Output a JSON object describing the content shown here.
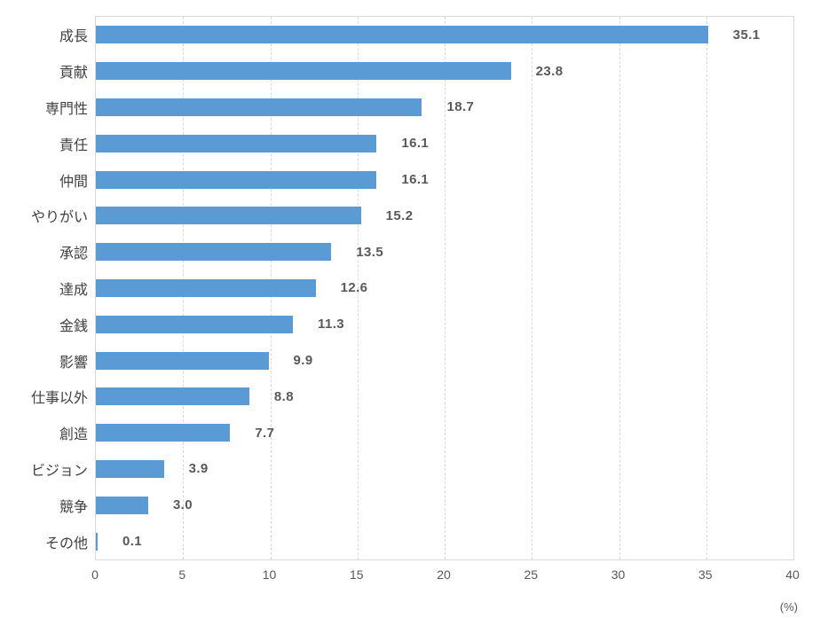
{
  "chart_data": {
    "type": "bar",
    "orientation": "horizontal",
    "title": "",
    "categories": [
      "成長",
      "貢献",
      "専門性",
      "責任",
      "仲間",
      "やりがい",
      "承認",
      "達成",
      "金銭",
      "影響",
      "仕事以外",
      "創造",
      "ビジョン",
      "競争",
      "その他"
    ],
    "values": [
      35.1,
      23.8,
      18.7,
      16.1,
      16.1,
      15.2,
      13.5,
      12.6,
      11.3,
      9.9,
      8.8,
      7.7,
      3.9,
      3.0,
      0.1
    ],
    "value_labels": [
      "35.1",
      "23.8",
      "18.7",
      "16.1",
      "16.1",
      "15.2",
      "13.5",
      "12.6",
      "11.3",
      "9.9",
      "8.8",
      "7.7",
      "3.9",
      "3.0",
      "0.1"
    ],
    "xlabel": "",
    "ylabel": "",
    "x_unit_label": "(%)",
    "xlim": [
      0,
      40
    ],
    "x_ticks": [
      0,
      5,
      10,
      15,
      20,
      25,
      30,
      35,
      40
    ],
    "grid": "vertical-dashed",
    "legend": "none",
    "bar_color": "#5B9BD5"
  },
  "colors": {
    "bar": "#5B9BD5",
    "gridline": "#d9d9d9",
    "plot_border": "#d9d9d9",
    "category_label": "#404040",
    "value_label": "#595959",
    "tick_label": "#595959"
  }
}
